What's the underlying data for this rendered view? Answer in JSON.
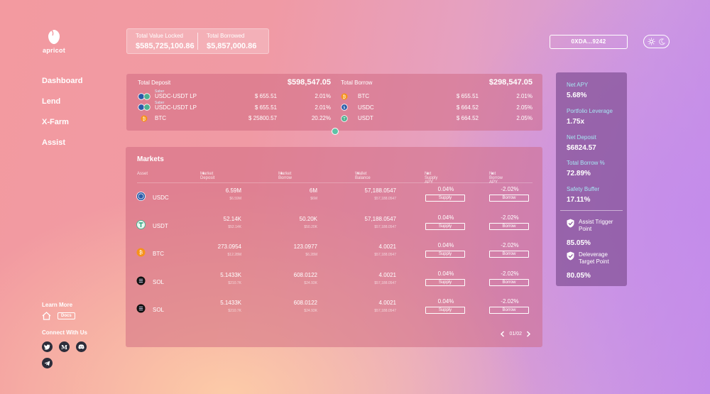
{
  "brand": {
    "name": "apricot"
  },
  "nav": [
    {
      "label": "Dashboard"
    },
    {
      "label": "Lend"
    },
    {
      "label": "X-Farm"
    },
    {
      "label": "Assist"
    }
  ],
  "stats": {
    "tvl_label": "Total Value Locked",
    "tvl_value": "$585,725,100.86",
    "borrowed_label": "Total Borrowed",
    "borrowed_value": "$5,857,000.86"
  },
  "wallet": {
    "address": "0XDA...9242"
  },
  "theme_toggle": {
    "icons": [
      "sun-icon",
      "moon-icon"
    ]
  },
  "summary": {
    "deposit": {
      "title": "Total Deposit",
      "total": "$598,547.05",
      "rows": [
        {
          "tag": "Saber",
          "name": "USDC-USDT LP",
          "amount": "$ 655.51",
          "pct": "2.01%",
          "icon": "usdc-usdt-lp-icon"
        },
        {
          "tag": "Saber",
          "name": "USDC-USDT LP",
          "amount": "$ 655.51",
          "pct": "2.01%",
          "icon": "usdc-usdt-lp-icon"
        },
        {
          "tag": "",
          "name": "BTC",
          "amount": "$ 25800.57",
          "pct": "20.22%",
          "icon": "btc-icon"
        }
      ]
    },
    "borrow": {
      "title": "Total Borrow",
      "total": "$298,547.05",
      "rows": [
        {
          "name": "BTC",
          "amount": "$ 655.51",
          "pct": "2.01%",
          "icon": "btc-icon"
        },
        {
          "name": "USDC",
          "amount": "$ 664.52",
          "pct": "2.05%",
          "icon": "usdc-icon"
        },
        {
          "name": "USDT",
          "amount": "$ 664.52",
          "pct": "2.05%",
          "icon": "usdt-icon"
        }
      ]
    }
  },
  "markets": {
    "title": "Markets",
    "columns": {
      "asset": "Asset",
      "market_deposit": "Market Deposit",
      "market_borrow": "Market Borrow",
      "wallet_balance": "Wallet Balance",
      "net_supply_apy": "Net Supply APY",
      "net_borrow_apy": "Net Borrow APY"
    },
    "supply_label": "Supply",
    "borrow_label": "Borrow",
    "rows": [
      {
        "asset": "USDC",
        "icon": "usdc-icon",
        "deposit": "6.59M",
        "deposit_usd": "$6.59M",
        "borrow": "6M",
        "borrow_usd": "$6M",
        "balance": "57,188.0547",
        "balance_usd": "$57,188.0547",
        "supply_apy": "0.04%",
        "borrow_apy": "-2.02%"
      },
      {
        "asset": "USDT",
        "icon": "usdt-icon",
        "deposit": "52.14K",
        "deposit_usd": "$52.14K",
        "borrow": "50.20K",
        "borrow_usd": "$50.20K",
        "balance": "57,188.0547",
        "balance_usd": "$57,188.0547",
        "supply_apy": "0.04%",
        "borrow_apy": "-2.02%"
      },
      {
        "asset": "BTC",
        "icon": "btc-icon",
        "deposit": "273.0954",
        "deposit_usd": "$12.28M",
        "borrow": "123.0977",
        "borrow_usd": "$6.28M",
        "balance": "4.0021",
        "balance_usd": "$57,188.0547",
        "supply_apy": "0.04%",
        "borrow_apy": "-2.02%"
      },
      {
        "asset": "SOL",
        "icon": "sol-icon",
        "deposit": "5.1433K",
        "deposit_usd": "$210.7K",
        "borrow": "608.0122",
        "borrow_usd": "$24.93K",
        "balance": "4.0021",
        "balance_usd": "$57,188.0547",
        "supply_apy": "0.04%",
        "borrow_apy": "-2.02%"
      },
      {
        "asset": "SOL",
        "icon": "sol-icon",
        "deposit": "5.1433K",
        "deposit_usd": "$210.7K",
        "borrow": "608.0122",
        "borrow_usd": "$24.93K",
        "balance": "4.0021",
        "balance_usd": "$57,188.0547",
        "supply_apy": "0.04%",
        "borrow_apy": "-2.02%"
      }
    ],
    "pager": "01/02"
  },
  "account": {
    "net_apy_label": "Net APY",
    "net_apy": "5.68%",
    "leverage_label": "Portfolio Leverage",
    "leverage": "1.75x",
    "net_deposit_label": "Net Deposit",
    "net_deposit": "$6824.57",
    "total_borrow_label": "Total Borrow %",
    "total_borrow": "72.89%",
    "safety_label": "Safety Buffer",
    "safety": "17.11%",
    "assist_trigger_label": "Assist Trigger Point",
    "assist_trigger": "85.05%",
    "deleverage_label": "Deleverage Target Point",
    "deleverage": "80.05%"
  },
  "footer": {
    "learn_more": "Learn More",
    "docs": "Docs",
    "connect": "Connect With Us",
    "socials": [
      "twitter-icon",
      "medium-icon",
      "discord-icon",
      "telegram-icon"
    ]
  },
  "colors": {
    "panel": "#cd647d",
    "account_label": "#a6e6f3",
    "account_panel": "#825096"
  }
}
